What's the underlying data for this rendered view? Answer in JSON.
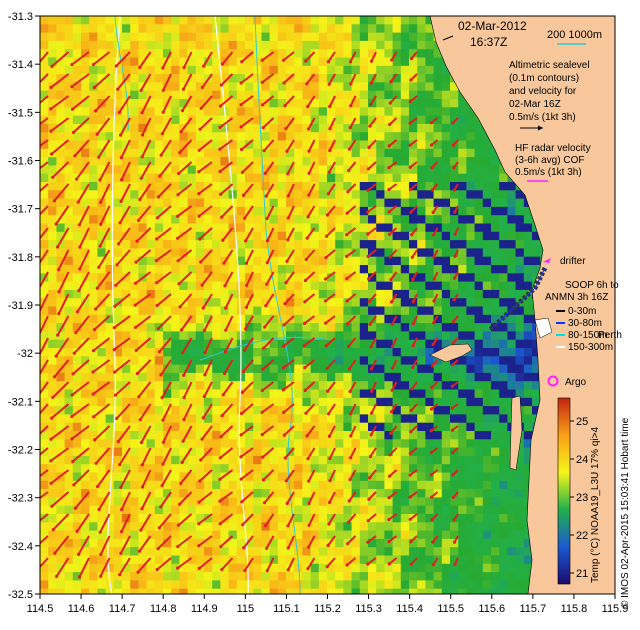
{
  "map": {
    "lon_ticks": [
      "114.5",
      "114.6",
      "114.7",
      "114.8",
      "114.9",
      "115",
      "115.1",
      "115.2",
      "115.3",
      "115.4",
      "115.5",
      "115.6",
      "115.7",
      "115.8",
      "115.9"
    ],
    "lat_ticks": [
      "-31.3",
      "-31.4",
      "-31.5",
      "-31.6",
      "-31.7",
      "-31.8",
      "-31.9",
      "-32",
      "-32.1",
      "-32.2",
      "-32.3",
      "-32.4",
      "-32.5"
    ],
    "lon_range": [
      114.5,
      115.9
    ],
    "lat_range": [
      -32.5,
      -31.3
    ],
    "land_color": "#f8c89c",
    "sst_palette": [
      "#1c0a6e",
      "#2ab12d",
      "#f5f519",
      "#f9b017",
      "#cc2a10"
    ]
  },
  "header": {
    "date": "02-Mar-2012",
    "time": "16:37Z"
  },
  "scale": {
    "label": "200  1000m"
  },
  "legend": {
    "altimetry_lines": [
      "Altimetric sealevel",
      "(0.1m contours)",
      "and velocity for",
      "02-Mar 16Z",
      "0.5m/s (1kt 3h)"
    ],
    "hf_lines": [
      "HF radar velocity",
      "(3-6h avg) COF",
      "0.5m/s (1kt 3h)"
    ],
    "drifter": "drifter",
    "soop_lines": [
      "SOOP 6h to",
      "ANMN 3h 16Z"
    ],
    "depth_items": [
      "0-30m",
      "30-80m",
      "80-150m",
      "150-300m"
    ],
    "depth_colors": [
      "#000000",
      "#1030ff",
      "#00e0e0",
      "#ffffff"
    ],
    "perth": "Perth",
    "argo": "Argo"
  },
  "colorbar": {
    "ticks": [
      "25",
      "24",
      "23",
      "22",
      "21"
    ],
    "label": "Temp (°C) NOAA19_L3U 17% qi>4"
  },
  "credit": "© IMOS 02-Apr-2015 15:03:41 Hobart time"
}
